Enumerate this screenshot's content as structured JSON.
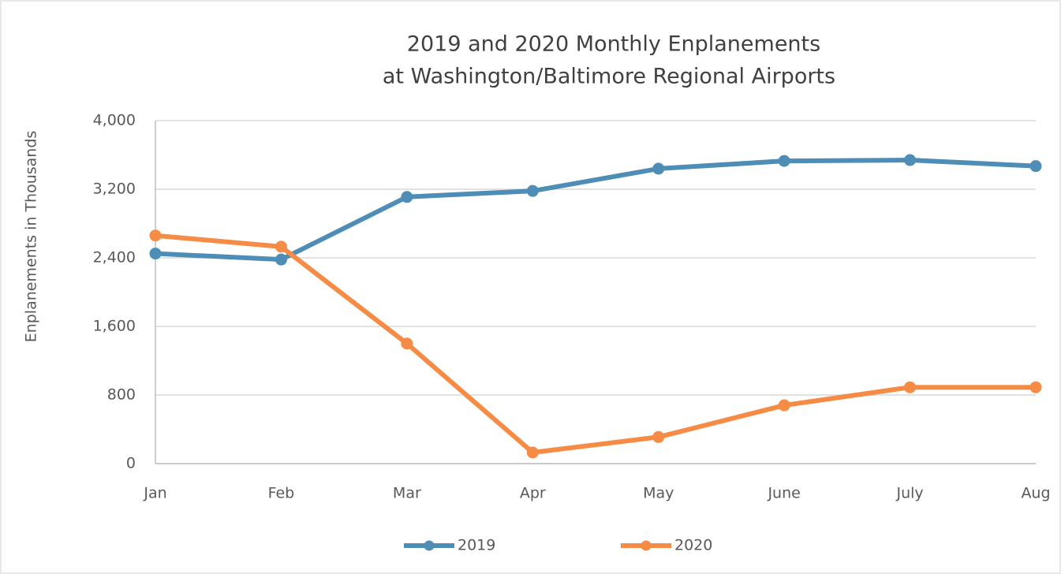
{
  "chart_data": {
    "type": "line",
    "title": [
      "2019 and 2020 Monthly Enplanements",
      "at Washington/Baltimore Regional Airports"
    ],
    "y_label": "Enplanements in Thousands",
    "categories": [
      "Jan",
      "Feb",
      "Mar",
      "Apr",
      "May",
      "June",
      "July",
      "Aug"
    ],
    "series": [
      {
        "name": "2019",
        "color": "#4e8db5",
        "values": [
          2450,
          2380,
          3110,
          3180,
          3440,
          3530,
          3540,
          3470
        ]
      },
      {
        "name": "2020",
        "color": "#f58b45",
        "values": [
          2660,
          2530,
          1400,
          130,
          310,
          680,
          890,
          890
        ]
      }
    ],
    "ylim": [
      0,
      4000
    ],
    "yticks": [
      0,
      800,
      {
        "value": 1600,
        "label": "1,600"
      },
      {
        "value": 2400,
        "label": "2,400"
      },
      {
        "value": 3200,
        "label": "3,200"
      },
      {
        "value": 4000,
        "label": "4,000"
      }
    ],
    "grid": true,
    "legend": "bottom"
  }
}
